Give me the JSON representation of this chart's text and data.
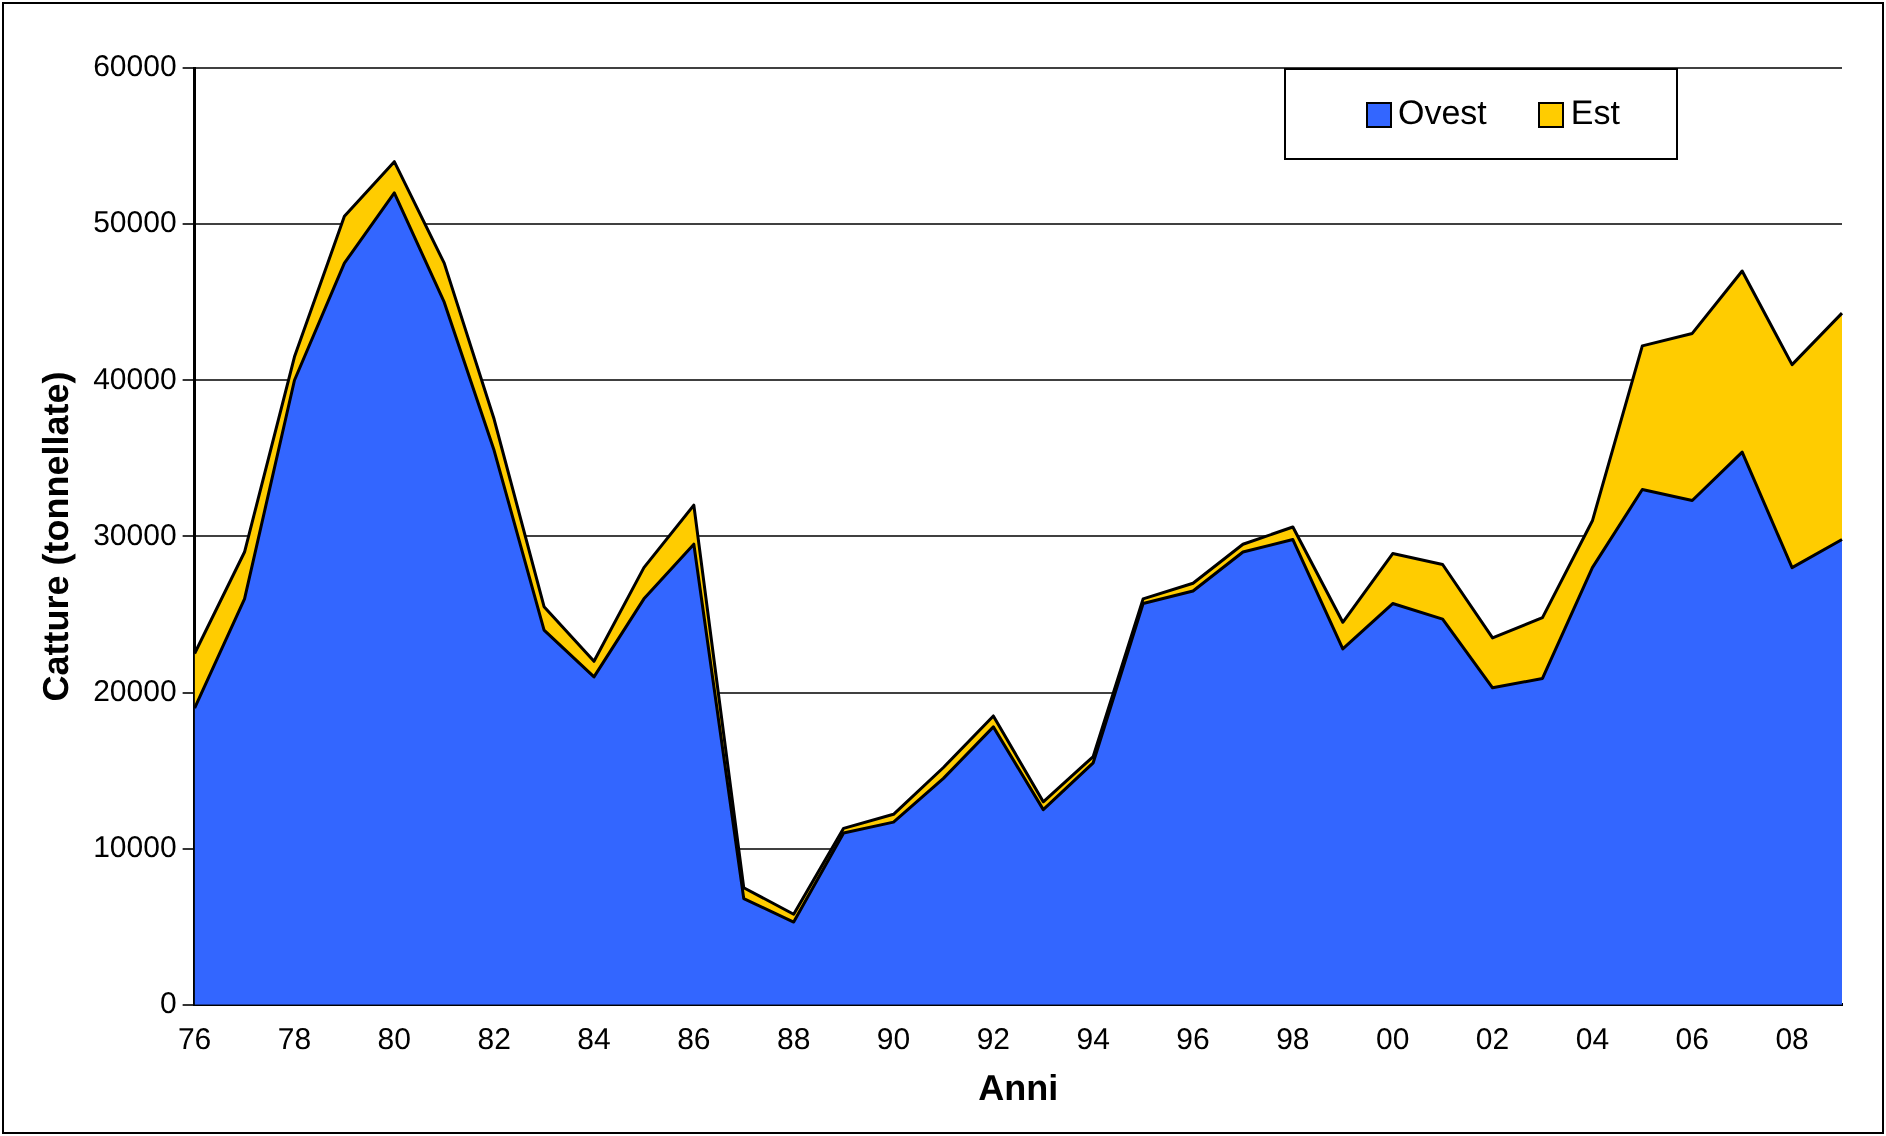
{
  "chart_data": {
    "type": "area",
    "stacked": true,
    "xlabel": "Anni",
    "ylabel": "Catture (tonnellate)",
    "categories": [
      "76",
      null,
      "78",
      null,
      "80",
      null,
      "82",
      null,
      "84",
      null,
      "86",
      null,
      "88",
      null,
      "90",
      null,
      "92",
      null,
      "94",
      null,
      "96",
      null,
      "98",
      null,
      "00",
      null,
      "02",
      null,
      "04",
      null,
      "06",
      null,
      "08",
      null
    ],
    "series": [
      {
        "name": "Ovest",
        "color": "#3366ff",
        "values": [
          19000,
          26000,
          40000,
          47500,
          52000,
          45000,
          35500,
          24000,
          21000,
          26000,
          29500,
          6800,
          5300,
          11000,
          11700,
          14500,
          17800,
          12500,
          15500,
          25700,
          26500,
          29000,
          29800,
          22800,
          25700,
          24700,
          20300,
          20900,
          28000,
          33000,
          32300,
          35400,
          28000,
          29800
        ]
      },
      {
        "name": "Est",
        "color": "#ffcc00",
        "values": [
          3500,
          3000,
          1500,
          3000,
          2000,
          2500,
          2000,
          1500,
          1000,
          2000,
          2500,
          700,
          500,
          300,
          500,
          700,
          700,
          500,
          400,
          300,
          500,
          500,
          800,
          1700,
          3200,
          3500,
          3200,
          3900,
          3000,
          9200,
          10700,
          11600,
          13000,
          14500
        ]
      }
    ],
    "ylim": [
      0,
      60000
    ],
    "yticks": [
      0,
      10000,
      20000,
      30000,
      40000,
      50000,
      60000
    ],
    "grid": "y",
    "legend": "top right"
  }
}
